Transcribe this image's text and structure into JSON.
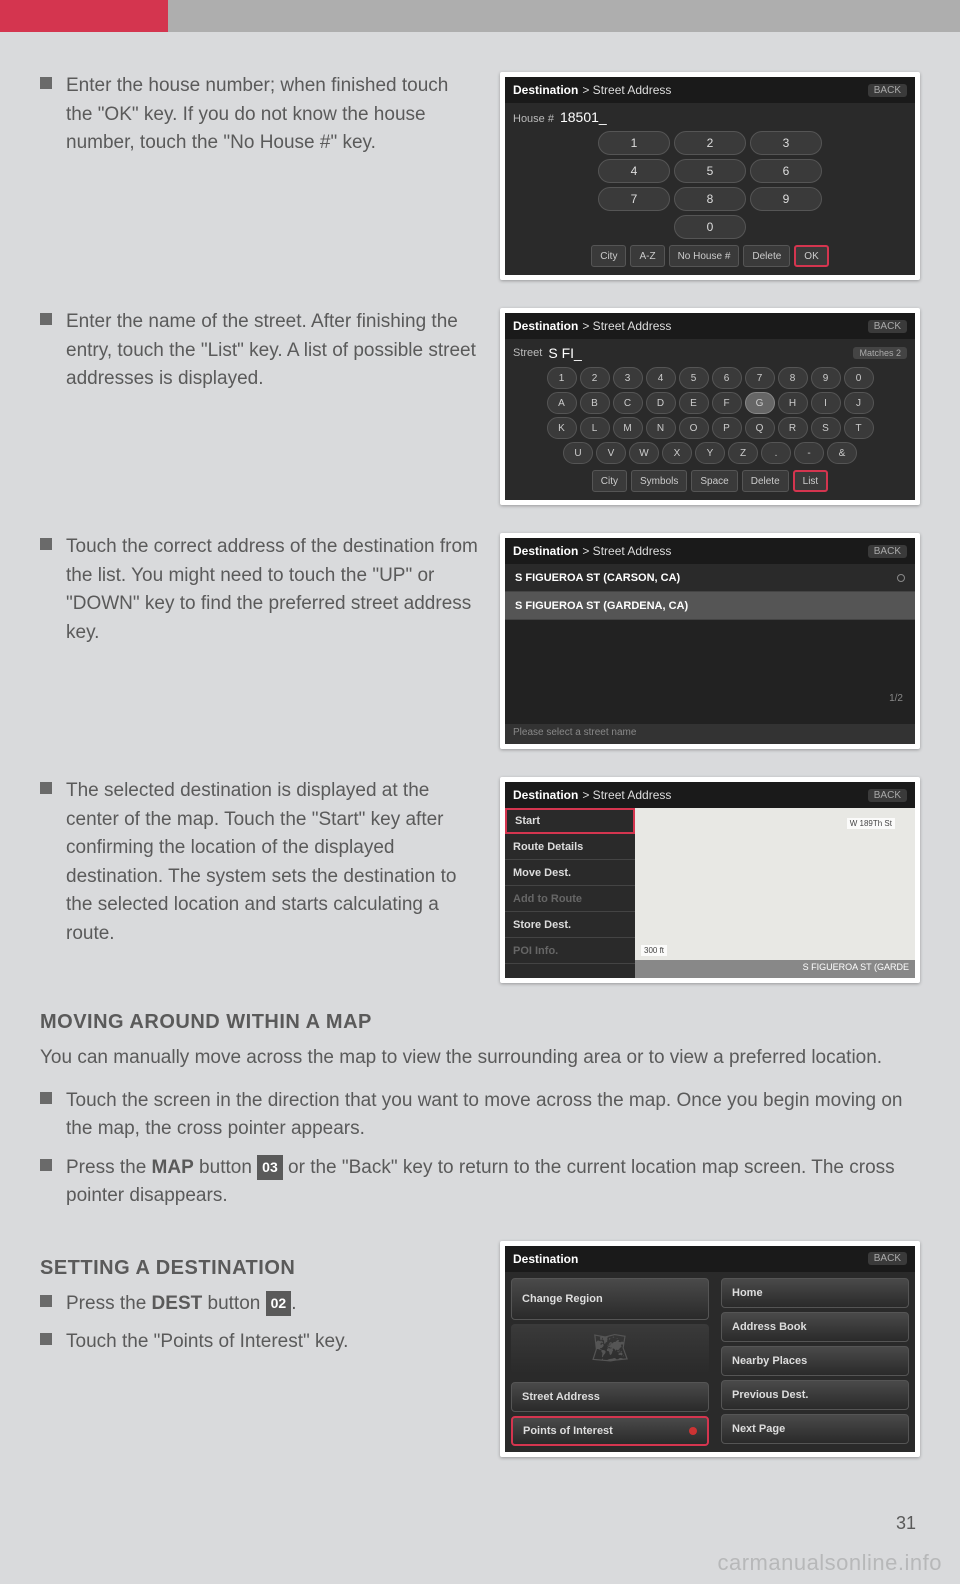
{
  "colors": {
    "accent": "#d4354f",
    "page_bg": "#d9dadc",
    "text": "#5a5a5a"
  },
  "step1": {
    "text": "Enter the house number; when finished touch the \"OK\" key. If you do not know the house number, touch the \"No House #\" key.",
    "screen": {
      "breadcrumb_a": "Destination",
      "breadcrumb_b": "> Street Address",
      "back": "BACK",
      "field_label": "House #",
      "field_value": "18501_",
      "keys": [
        [
          "1",
          "2",
          "3"
        ],
        [
          "4",
          "5",
          "6"
        ],
        [
          "7",
          "8",
          "9"
        ],
        [
          "0"
        ]
      ],
      "buttons": [
        "City",
        "A-Z",
        "No House #",
        "Delete",
        "OK"
      ]
    }
  },
  "step2": {
    "text": "Enter the name of the street. After finishing the entry, touch the \"List\" key. A list of possible street addresses is displayed.",
    "screen": {
      "breadcrumb_a": "Destination",
      "breadcrumb_b": "> Street Address",
      "back": "BACK",
      "field_label": "Street",
      "field_value": "S FI_",
      "matches": "Matches 2",
      "rows": [
        [
          "1",
          "2",
          "3",
          "4",
          "5",
          "6",
          "7",
          "8",
          "9",
          "0"
        ],
        [
          "A",
          "B",
          "C",
          "D",
          "E",
          "F",
          "G",
          "H",
          "I",
          "J"
        ],
        [
          "K",
          "L",
          "M",
          "N",
          "O",
          "P",
          "Q",
          "R",
          "S",
          "T"
        ],
        [
          "U",
          "V",
          "W",
          "X",
          "Y",
          "Z",
          ".",
          "-",
          "&"
        ]
      ],
      "buttons": [
        "City",
        "Symbols",
        "Space",
        "Delete",
        "List"
      ]
    }
  },
  "step3": {
    "text": "Touch the correct address of the destination from the list. You might need to touch the \"UP\" or \"DOWN\" key to find the preferred street address key.",
    "screen": {
      "breadcrumb_a": "Destination",
      "breadcrumb_b": "> Street Address",
      "back": "BACK",
      "items": [
        "S FIGUEROA ST (CARSON, CA)",
        "S FIGUEROA ST (GARDENA, CA)"
      ],
      "page": "1/2",
      "hint": "Please select a street name"
    }
  },
  "step4": {
    "text": "The selected destination is displayed at the center of the map. Touch the \"Start\" key after confirming the location of the displayed destination. The system sets the destination to the selected location and starts calculating a route.",
    "screen": {
      "breadcrumb_a": "Destination",
      "breadcrumb_b": "> Street Address",
      "back": "BACK",
      "menu": [
        "Start",
        "Route Details",
        "Move Dest.",
        "Add to Route",
        "Store Dest.",
        "POI Info."
      ],
      "street_label": "W 189Th St",
      "scale": "300 ft",
      "footer": "S FIGUEROA ST (GARDE"
    }
  },
  "moving": {
    "heading": "MOVING AROUND WITHIN A MAP",
    "intro": "You can manually move across the map to view the surrounding area or to view a preferred location.",
    "b1": "Touch the screen in the direction that you want to move across the map. Once you begin moving on the map, the cross pointer appears.",
    "b2a": "Press the ",
    "b2b": "MAP",
    "b2c": " button ",
    "b2num": "03",
    "b2d": " or the \"Back\" key to return to the current location map screen. The cross pointer disappears."
  },
  "setting": {
    "heading": "SETTING A DESTINATION",
    "b1a": "Press the ",
    "b1b": "DEST",
    "b1c": " button ",
    "b1num": "02",
    "b1d": ".",
    "b2": "Touch the \"Points of Interest\" key.",
    "screen": {
      "breadcrumb_a": "Destination",
      "back": "BACK",
      "left": [
        "Change Region",
        "Street Address",
        "Points of Interest"
      ],
      "right": [
        "Home",
        "Address Book",
        "Nearby Places",
        "Previous Dest.",
        "Next Page"
      ]
    }
  },
  "page_num": "31",
  "watermark": "carmanualsonline.info"
}
